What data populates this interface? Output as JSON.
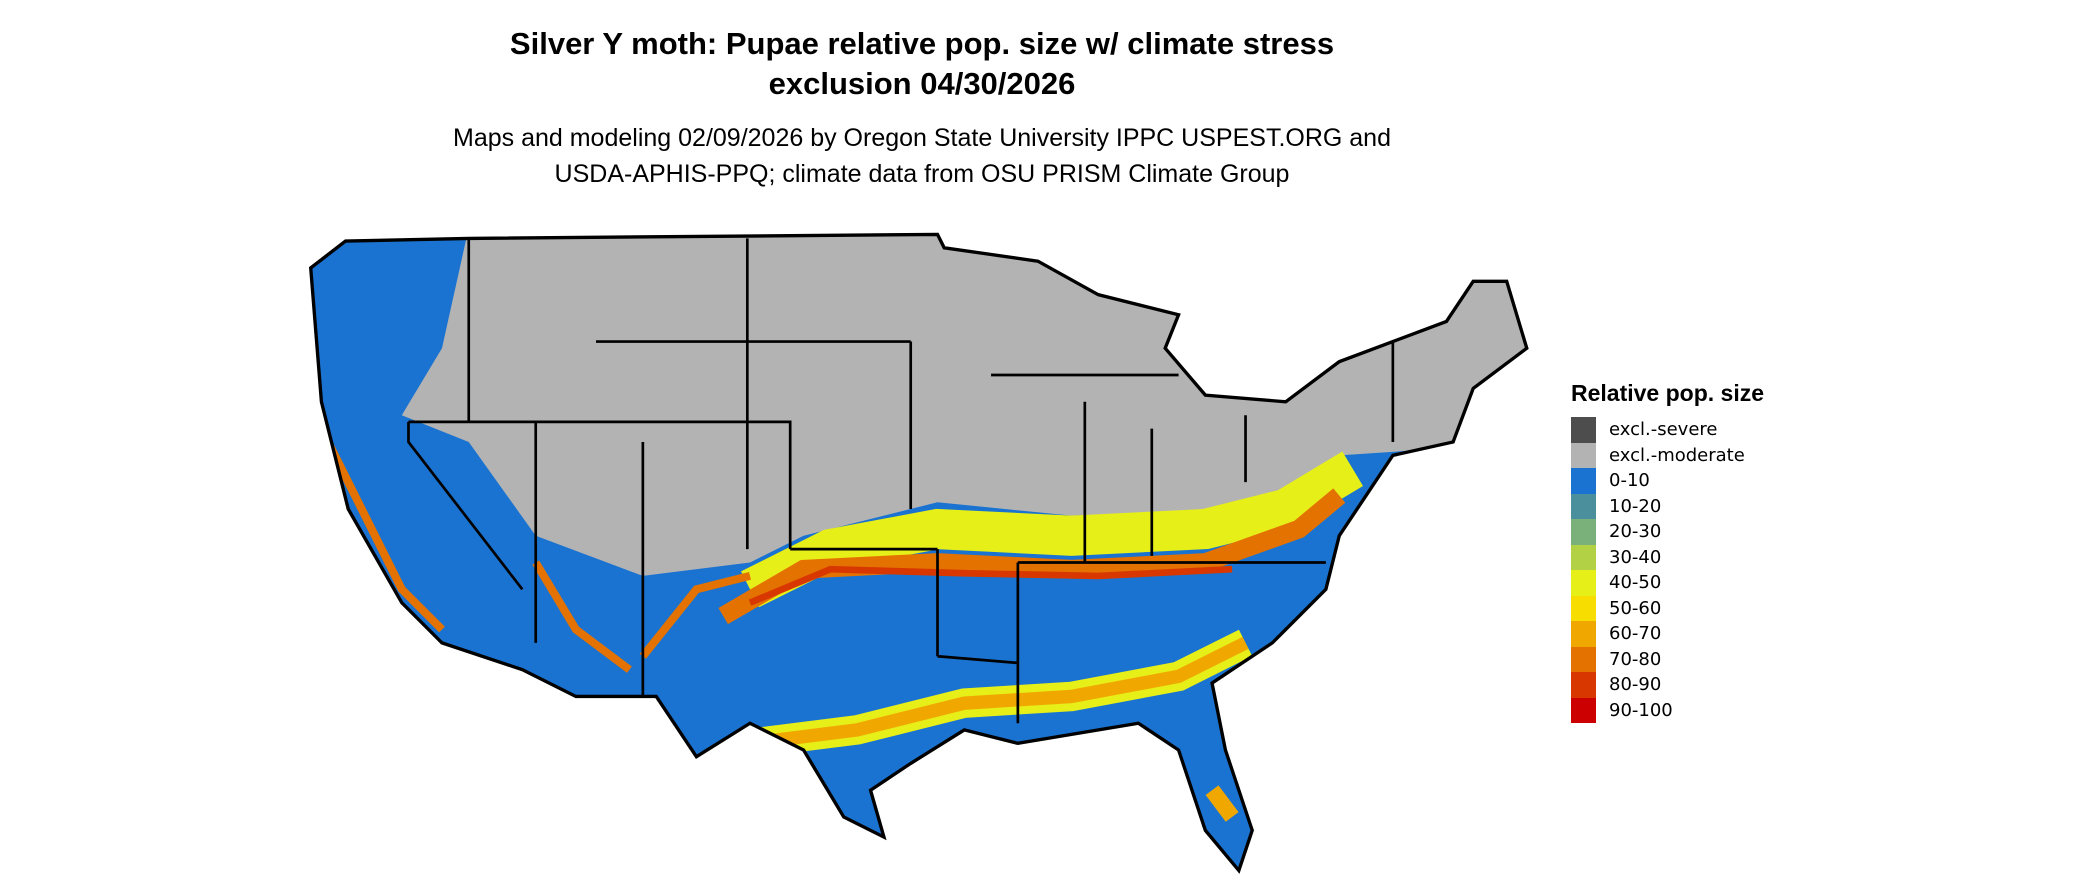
{
  "title": {
    "line1": "Silver Y moth: Pupae relative pop. size w/ climate stress",
    "line2": "exclusion 04/30/2026"
  },
  "subtitle": {
    "line1": "Maps and modeling 02/09/2026 by Oregon State University IPPC USPEST.ORG and",
    "line2": "USDA-APHIS-PPQ; climate data from OSU PRISM Climate Group"
  },
  "legend": {
    "title": "Relative pop. size",
    "items": [
      {
        "label": "excl.-severe",
        "color": "#4d4d4d"
      },
      {
        "label": "excl.-moderate",
        "color": "#b3b3b3"
      },
      {
        "label": "0-10",
        "color": "#1a73d0"
      },
      {
        "label": "10-20",
        "color": "#4a8f9b"
      },
      {
        "label": "20-30",
        "color": "#7ab07a"
      },
      {
        "label": "30-40",
        "color": "#b3d145"
      },
      {
        "label": "40-50",
        "color": "#e6ef18"
      },
      {
        "label": "50-60",
        "color": "#f8de00"
      },
      {
        "label": "60-70",
        "color": "#f0a800"
      },
      {
        "label": "70-80",
        "color": "#e47200"
      },
      {
        "label": "80-90",
        "color": "#d83800"
      },
      {
        "label": "90-100",
        "color": "#cc0000"
      }
    ]
  }
}
